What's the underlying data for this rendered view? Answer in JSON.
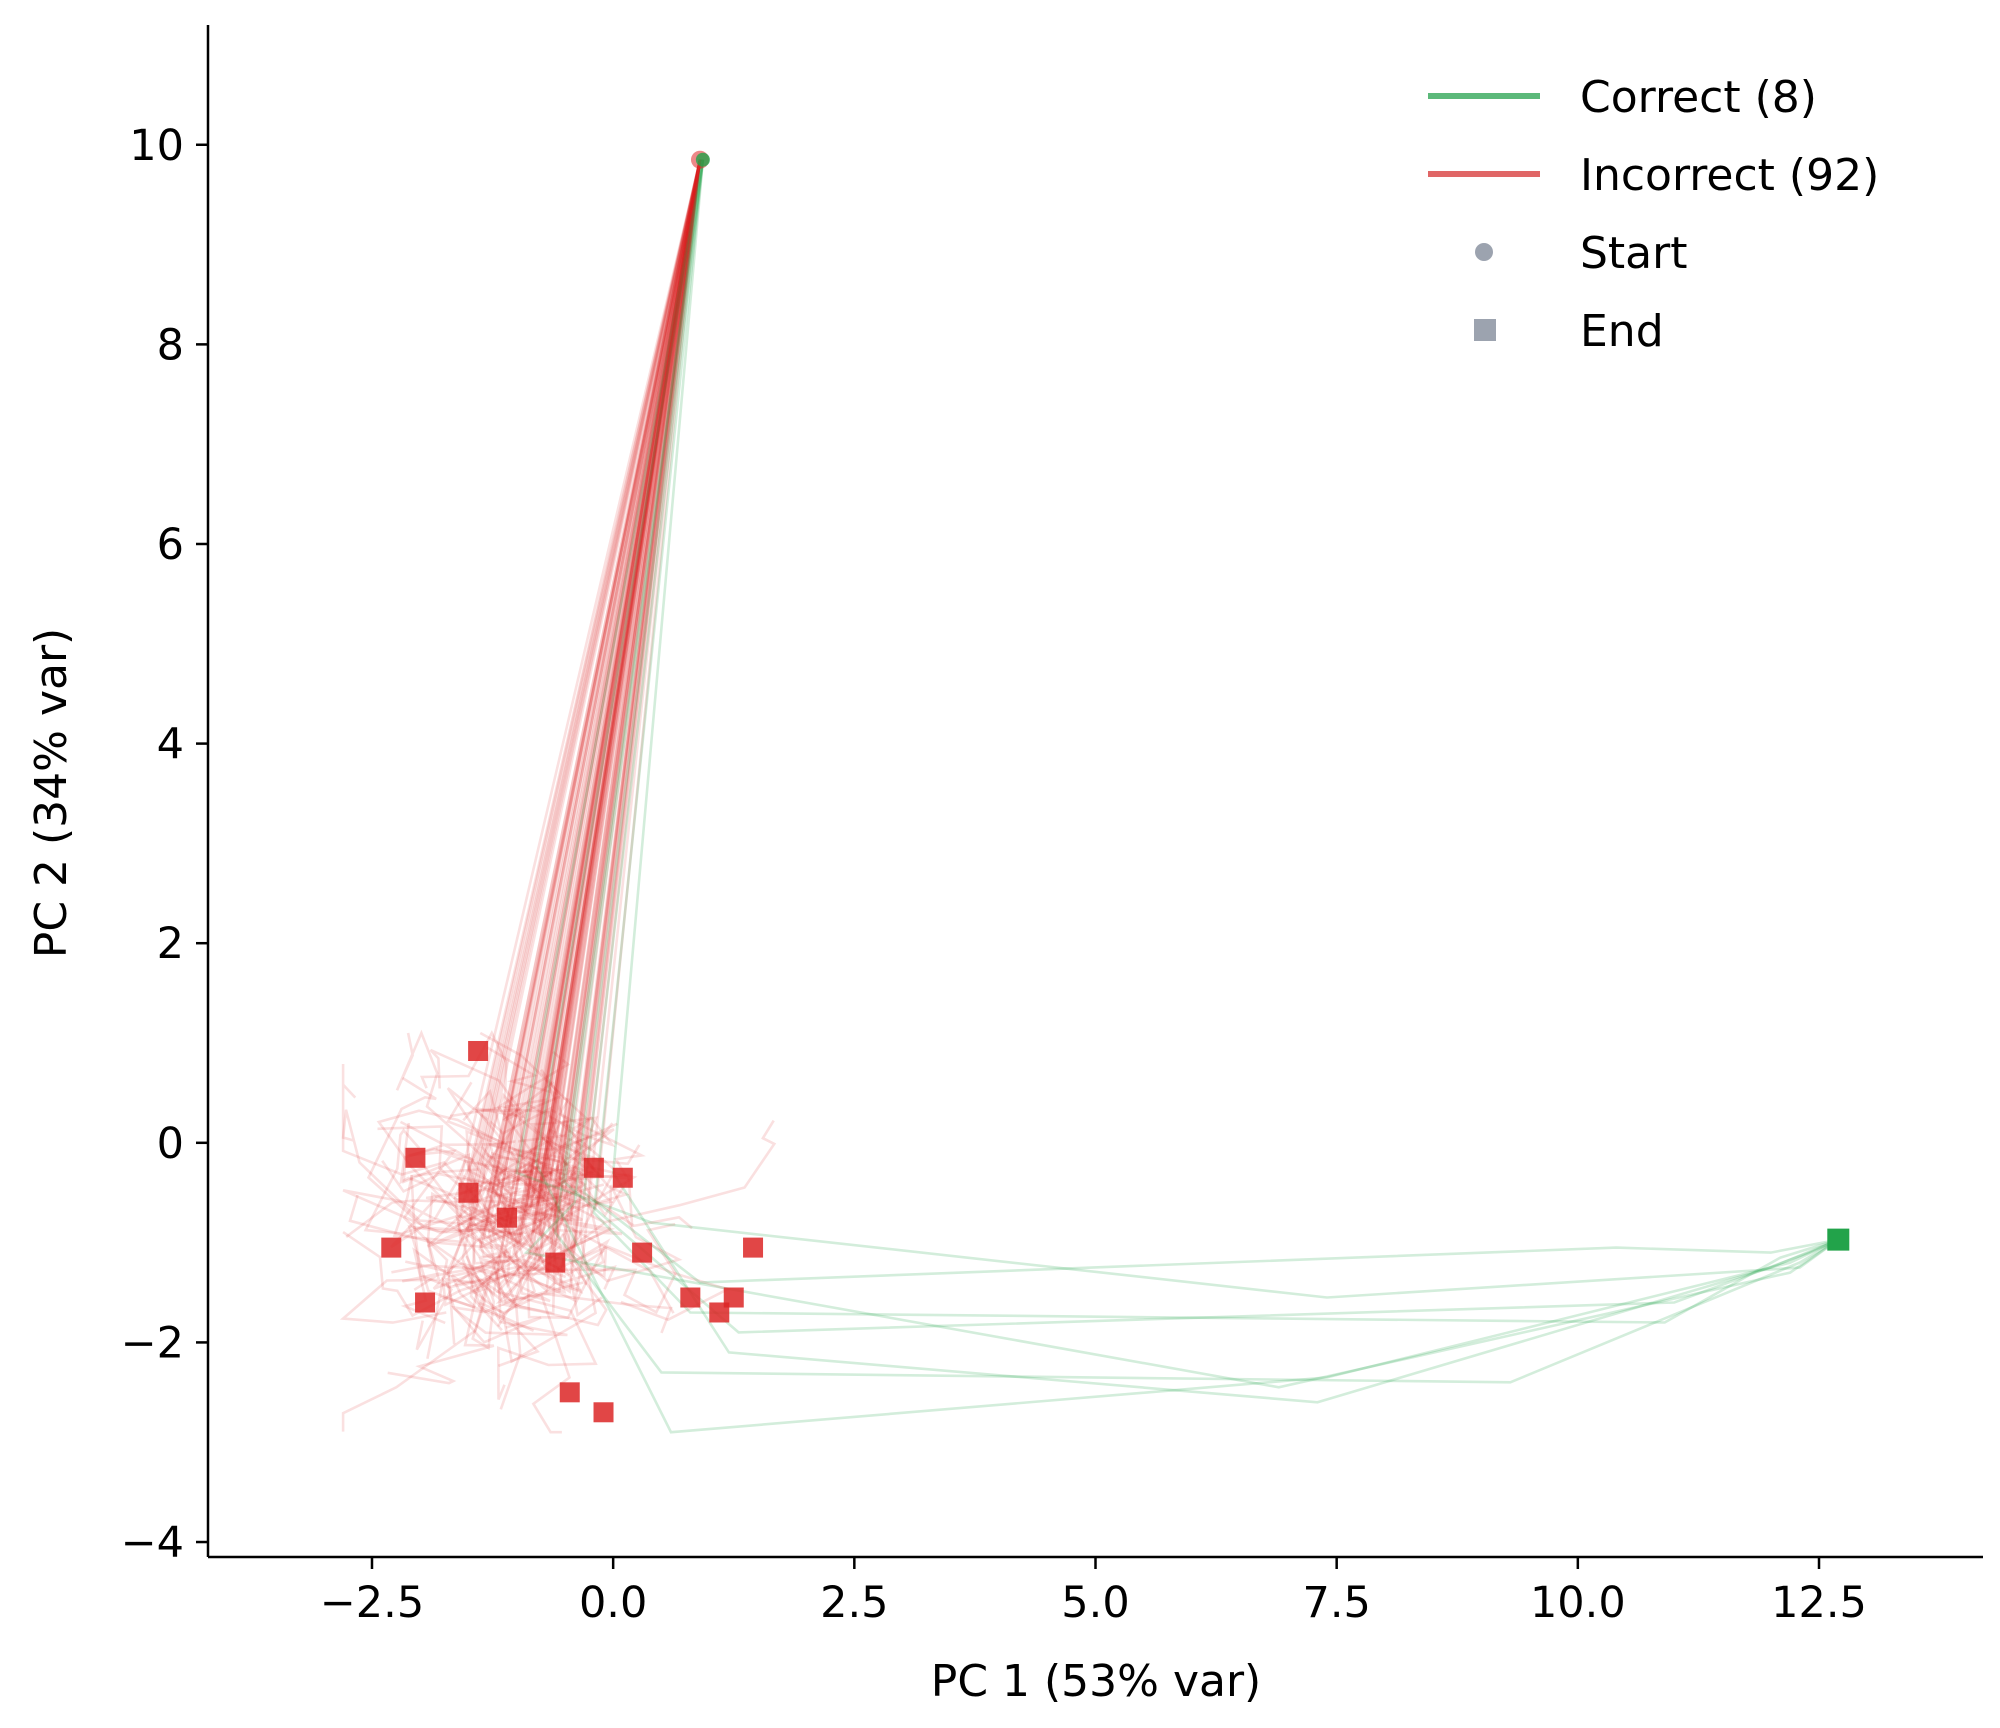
{
  "chart_data": {
    "type": "line",
    "title": "",
    "xlabel": "PC 1  (53% var)",
    "ylabel": "PC 2  (34% var)",
    "xlim": [
      -4.2,
      14.2
    ],
    "ylim": [
      -4.15,
      11.2
    ],
    "xticks": [
      -2.5,
      0.0,
      2.5,
      5.0,
      7.5,
      10.0,
      12.5
    ],
    "xtick_labels": [
      "−2.5",
      "0.0",
      "2.5",
      "5.0",
      "7.5",
      "10.0",
      "12.5"
    ],
    "yticks": [
      -4,
      -2,
      0,
      2,
      4,
      6,
      8,
      10
    ],
    "ytick_labels": [
      "−4",
      "−2",
      "0",
      "2",
      "4",
      "6",
      "8",
      "10"
    ],
    "grid": false,
    "legend_position": "top-right",
    "legend": [
      {
        "label": "Correct (8)",
        "kind": "line",
        "color": "#5cb97a"
      },
      {
        "label": "Incorrect (92)",
        "kind": "line",
        "color": "#e06666"
      },
      {
        "label": "Start",
        "kind": "circle",
        "color": "#9ca3af"
      },
      {
        "label": "End",
        "kind": "square",
        "color": "#9ca3af"
      }
    ],
    "series": [
      {
        "name": "Correct (8)",
        "color": "#22a34a",
        "start": [
          0.93,
          9.85
        ],
        "trajectories": [
          [
            [
              0.93,
              9.85
            ],
            [
              -0.4,
              -0.6
            ],
            [
              -0.9,
              -1.1
            ],
            [
              6.9,
              -2.45
            ],
            [
              12.2,
              -1.3
            ],
            [
              12.7,
              -0.97
            ]
          ],
          [
            [
              0.93,
              9.85
            ],
            [
              0.0,
              -0.3
            ],
            [
              1.2,
              -2.1
            ],
            [
              7.3,
              -2.6
            ],
            [
              12.0,
              -1.25
            ],
            [
              12.7,
              -0.97
            ]
          ],
          [
            [
              0.93,
              9.85
            ],
            [
              -0.6,
              -0.9
            ],
            [
              0.5,
              -2.3
            ],
            [
              9.3,
              -2.4
            ],
            [
              12.3,
              -1.2
            ],
            [
              12.7,
              -0.97
            ]
          ],
          [
            [
              0.93,
              9.85
            ],
            [
              -0.2,
              -0.7
            ],
            [
              0.8,
              -1.7
            ],
            [
              10.9,
              -1.8
            ],
            [
              12.1,
              -1.15
            ],
            [
              12.7,
              -0.97
            ]
          ],
          [
            [
              0.93,
              9.85
            ],
            [
              -0.8,
              -0.2
            ],
            [
              0.6,
              -2.9
            ],
            [
              7.4,
              -2.35
            ],
            [
              12.2,
              -1.2
            ],
            [
              12.7,
              -0.97
            ]
          ],
          [
            [
              0.93,
              9.85
            ],
            [
              -0.5,
              -0.4
            ],
            [
              1.3,
              -1.9
            ],
            [
              11.0,
              -1.6
            ],
            [
              12.4,
              -1.1
            ],
            [
              12.7,
              -0.97
            ]
          ],
          [
            [
              0.93,
              9.85
            ],
            [
              -1.0,
              -0.3
            ],
            [
              0.4,
              -0.8
            ],
            [
              7.4,
              -1.55
            ],
            [
              12.3,
              -1.25
            ],
            [
              12.7,
              -0.97
            ]
          ],
          [
            [
              0.93,
              9.85
            ],
            [
              -0.3,
              -0.5
            ],
            [
              0.9,
              -1.4
            ],
            [
              10.4,
              -1.05
            ],
            [
              12.0,
              -1.1
            ],
            [
              12.7,
              -0.97
            ]
          ]
        ],
        "end": [
          [
            12.7,
            -0.97
          ]
        ]
      },
      {
        "name": "Incorrect (92)",
        "color": "#dc2626",
        "start": [
          0.9,
          9.85
        ],
        "end": [
          [
            -1.4,
            0.92
          ],
          [
            -2.05,
            -0.15
          ],
          [
            -2.3,
            -1.05
          ],
          [
            -1.95,
            -1.6
          ],
          [
            -0.45,
            -2.5
          ],
          [
            -0.1,
            -2.7
          ],
          [
            -0.2,
            -0.25
          ],
          [
            0.1,
            -0.35
          ],
          [
            0.8,
            -1.55
          ],
          [
            1.1,
            -1.7
          ],
          [
            1.25,
            -1.55
          ],
          [
            1.45,
            -1.05
          ],
          [
            -1.1,
            -0.75
          ],
          [
            -0.6,
            -1.2
          ],
          [
            -1.5,
            -0.5
          ],
          [
            0.3,
            -1.1
          ]
        ]
      }
    ]
  }
}
